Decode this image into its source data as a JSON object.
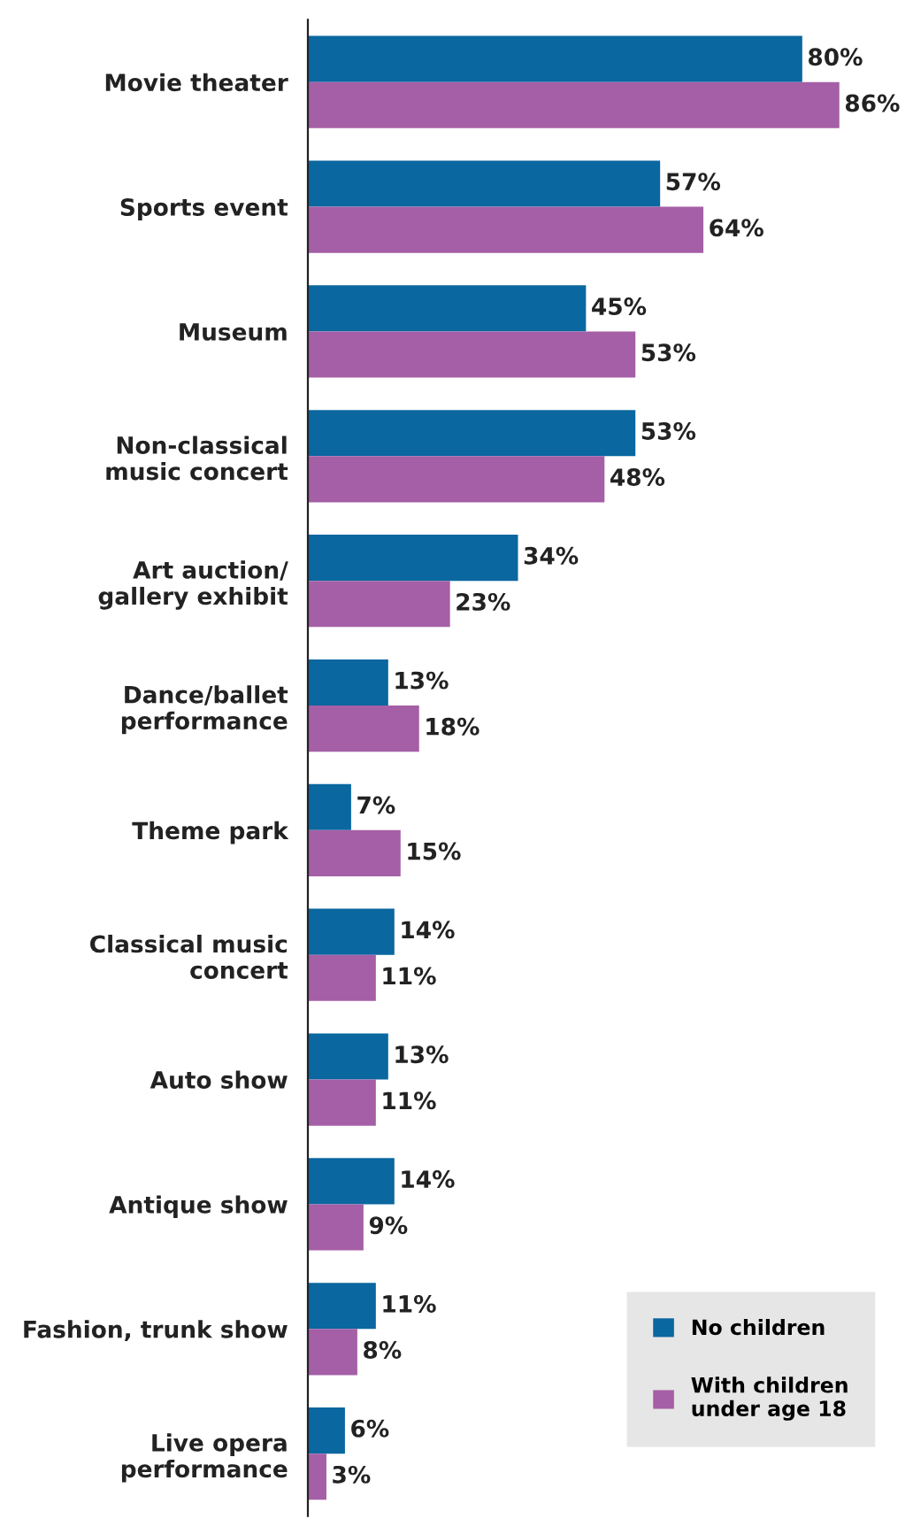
{
  "chart_data": {
    "type": "bar",
    "orientation": "horizontal",
    "categories": [
      "Movie theater",
      "Sports event",
      "Museum",
      "Non-classical\nmusic concert",
      "Art auction/\ngallery exhibit",
      "Dance/ballet\nperformance",
      "Theme park",
      "Classical music\nconcert",
      "Auto show",
      "Antique show",
      "Fashion, trunk show",
      "Live opera\nperformance"
    ],
    "series": [
      {
        "name": "No children",
        "color": "#0a67a0",
        "values": [
          80,
          57,
          45,
          53,
          34,
          13,
          7,
          14,
          13,
          14,
          11,
          6
        ],
        "value_labels": [
          "80%",
          "57%",
          "45%",
          "53%",
          "34%",
          "13%",
          "7%",
          "14%",
          "13%",
          "14%",
          "11%",
          "6%"
        ]
      },
      {
        "name": "With children\nunder age 18",
        "color": "#a55fa6",
        "values": [
          86,
          64,
          53,
          48,
          23,
          18,
          15,
          11,
          11,
          9,
          8,
          3
        ],
        "value_labels": [
          "86%",
          "64%",
          "53%",
          "48%",
          "23%",
          "18%",
          "15%",
          "11%",
          "11%",
          "9%",
          "8%",
          "3%"
        ]
      }
    ],
    "tick_labels": "y",
    "grid": false,
    "legend": "bottom right"
  }
}
